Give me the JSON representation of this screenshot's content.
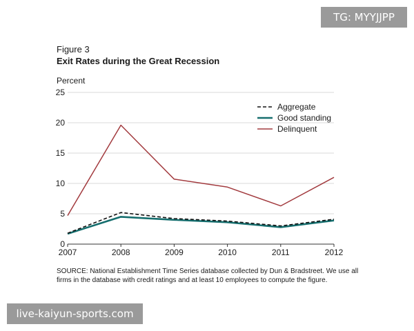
{
  "watermarks": {
    "top_right": "TG: MYYJJPP",
    "bottom_left": "live-kaiyun-sports.com"
  },
  "source_note": "SOURCE: National Establishment Time Series database collected by Dun & Bradstreet. We use all firms in the database with credit ratings and at least 10 employees to compute the figure.",
  "colors": {
    "aggregate": "#111111",
    "good_standing": "#156e6e",
    "delinquent": "#a23a3e",
    "axis": "#333333",
    "grid": "#d9d9d9"
  },
  "chart_data": {
    "type": "line",
    "figure_label": "Figure 3",
    "title": "Exit Rates during the Great Recession",
    "ylabel": "Percent",
    "xlabel": "",
    "x": [
      "2007",
      "2008",
      "2009",
      "2010",
      "2011",
      "2012"
    ],
    "ylim": [
      0,
      25
    ],
    "yticks": [
      "0",
      "5",
      "10",
      "15",
      "20",
      "25"
    ],
    "grid": true,
    "legend_position": "top-right",
    "series": [
      {
        "name": "Aggregate",
        "style": "dashed",
        "values": [
          1.8,
          5.2,
          4.2,
          3.8,
          3.0,
          4.1
        ]
      },
      {
        "name": "Good standing",
        "style": "solid",
        "values": [
          1.7,
          4.5,
          4.0,
          3.6,
          2.8,
          3.9
        ]
      },
      {
        "name": "Delinquent",
        "style": "solid",
        "values": [
          4.7,
          19.6,
          10.7,
          9.4,
          6.3,
          11.0
        ]
      }
    ]
  }
}
